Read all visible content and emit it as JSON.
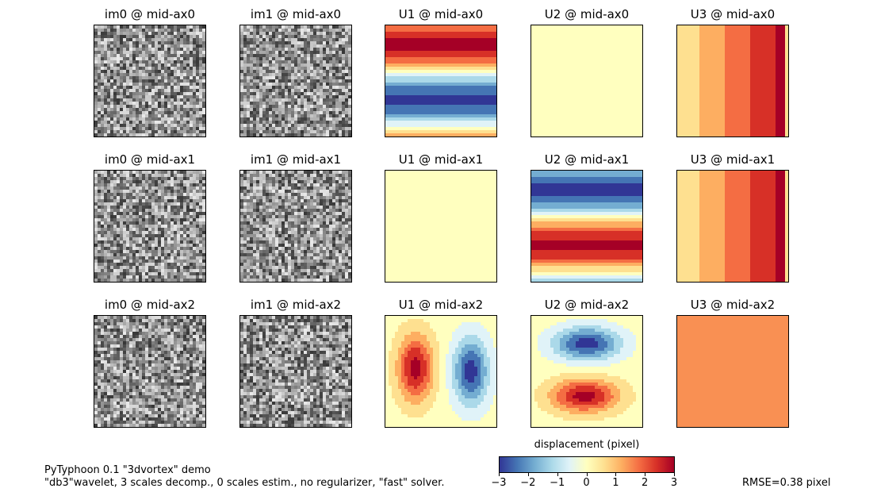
{
  "panels": [
    {
      "title": "im0 @ mid-ax0",
      "kind": "noise",
      "seed": 11
    },
    {
      "title": "im1 @ mid-ax0",
      "kind": "noise",
      "seed": 23
    },
    {
      "title": "U1 @ mid-ax0",
      "kind": "bands_warm_cool"
    },
    {
      "title": "U2 @ mid-ax0",
      "kind": "flat_light"
    },
    {
      "title": "U3 @ mid-ax0",
      "kind": "horizontal_ramp"
    },
    {
      "title": "im0 @ mid-ax1",
      "kind": "noise",
      "seed": 37
    },
    {
      "title": "im1 @ mid-ax1",
      "kind": "noise",
      "seed": 41
    },
    {
      "title": "U1 @ mid-ax1",
      "kind": "flat_light"
    },
    {
      "title": "U2 @ mid-ax1",
      "kind": "bands_cool_warm"
    },
    {
      "title": "U3 @ mid-ax1",
      "kind": "horizontal_ramp"
    },
    {
      "title": "im0 @ mid-ax2",
      "kind": "noise",
      "seed": 53
    },
    {
      "title": "im1 @ mid-ax2",
      "kind": "noise",
      "seed": 67
    },
    {
      "title": "U1 @ mid-ax2",
      "kind": "vortex_lr"
    },
    {
      "title": "U2 @ mid-ax2",
      "kind": "vortex_tb"
    },
    {
      "title": "U3 @ mid-ax2",
      "kind": "flat_orange"
    }
  ],
  "colorbar": {
    "title": "displacement (pixel)",
    "ticks": [
      "−3",
      "−2",
      "−1",
      "0",
      "1",
      "2",
      "3"
    ]
  },
  "footer": {
    "line1": "PyTyphoon 0.1 \"3dvortex\" demo",
    "line2": "\"db3\"wavelet, 3 scales decomp., 0 scales estim., no regularizer, \"fast\" solver.",
    "rmse": "RMSE=0.38 pixel"
  },
  "chart_data": {
    "type": "heatmap",
    "title": "PyTyphoon 0.1 \"3dvortex\" demo",
    "colorbar_label": "displacement (pixel)",
    "colorbar_range": [
      -3,
      3
    ],
    "colorbar_ticks": [
      -3,
      -2,
      -1,
      0,
      1,
      2,
      3
    ],
    "colormap": "RdYlBu_r",
    "grid_rows": 3,
    "grid_cols": 5,
    "rmse_pixel": 0.38
  }
}
